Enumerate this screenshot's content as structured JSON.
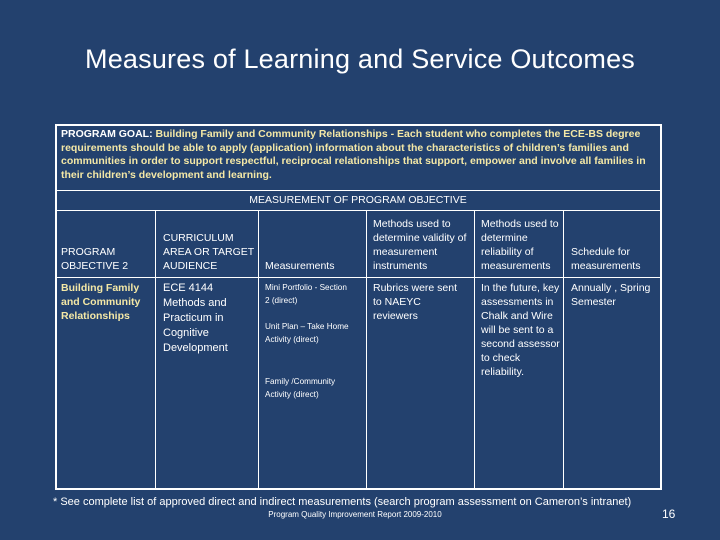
{
  "slide": {
    "title": "Measures of Learning and Service Outcomes",
    "goal_label": "PROGRAM GOAL: ",
    "goal_text": "Building Family and Community Relationships - Each student who completes the ECE-BS degree requirements should be able to apply (application) information about the characteristics of children’s families and communities in order to support respectful, reciprocal relationships that support, empower and involve all families in their children’s development and learning.",
    "measurement_header": "MEASUREMENT OF PROGRAM OBJECTIVE",
    "columns": {
      "c1": "PROGRAM OBJECTIVE 2",
      "c2": "CURRICULUM AREA OR TARGET AUDIENCE",
      "c3": "Measurements",
      "c4": "Methods used to determine validity of measurement instruments",
      "c5": "Methods used to determine reliability of measurements",
      "c6": "Schedule for measurements"
    },
    "row": {
      "objective": "Building Family and Community Relationships",
      "curriculum": "ECE 4144 Methods and Practicum in Cognitive Development",
      "measure_1": "Mini Portfolio - Section 2 (direct)",
      "measure_2": "Unit Plan – Take Home Activity (direct)",
      "measure_3": "Family /Community Activity (direct)",
      "validity": "Rubrics were sent to NAEYC reviewers",
      "reliability": "In the future, key assessments in Chalk and Wire will be sent to a second assessor to check reliability.",
      "schedule": "Annually , Spring Semester"
    },
    "footnote": "* See complete list of approved direct and indirect measurements (search program assessment on Cameron’s intranet)",
    "report": "Program Quality Improvement Report 2009-2010",
    "page_number": "16"
  },
  "colors": {
    "background": "#23416e",
    "highlight": "#f4e8a6",
    "text": "#ffffff"
  }
}
